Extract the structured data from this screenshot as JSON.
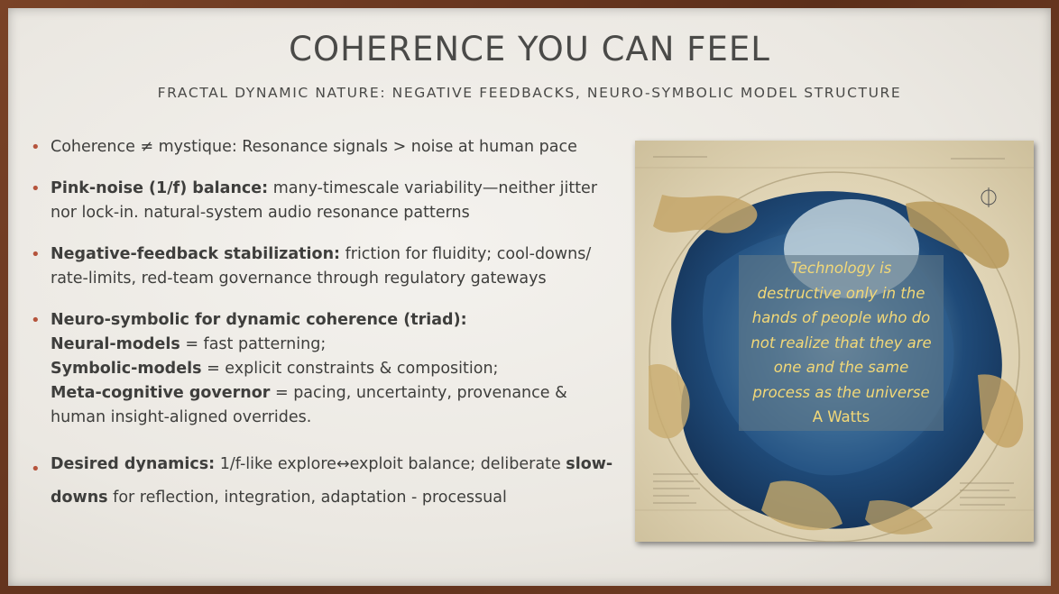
{
  "slide": {
    "title": "COHERENCE YOU CAN FEEL",
    "subtitle": "FRACTAL DYNAMIC NATURE: NEGATIVE FEEDBACKS, NEURO-SYMBOLIC MODEL STRUCTURE",
    "bullet_marker": "•",
    "bullets": [
      {
        "text": "Coherence ≠ mystique: Resonance signals > noise at human pace"
      },
      {
        "bold": "Pink-noise (1/f) balance:",
        "text": " many-timescale variability—neither jitter nor lock-in. natural-system audio resonance patterns"
      },
      {
        "bold": "Negative-feedback stabilization:",
        "text": " friction for fluidity; cool-downs/ rate-limits, red-team governance through regulatory gateways"
      },
      {
        "bold": "Neuro-symbolic for dynamic coherence (triad):",
        "lines": [
          {
            "bold": "Neural-models",
            "text": " = fast patterning;"
          },
          {
            "bold": "Symbolic-models",
            "text": " = explicit constraints & composition;"
          },
          {
            "bold": "Meta-cognitive governor",
            "text": " = pacing, uncertainty, provenance & human insight-aligned overrides."
          }
        ]
      },
      {
        "bold": "Desired dynamics:",
        "text": " 1/f-like explore↔exploit balance; deliberate ",
        "bold2": "slow-downs",
        "text2": " for reflection, integration, adaptation - processual"
      }
    ],
    "quote": {
      "lines": [
        "Technology is",
        "destructive only in the",
        "hands of people who do",
        "not realize that they are",
        "one and the same",
        "process as the universe"
      ],
      "author": "A Watts"
    }
  },
  "colors": {
    "accent": "#b5543c",
    "quote_text": "#f2d878",
    "frame": "#6b3a22"
  }
}
